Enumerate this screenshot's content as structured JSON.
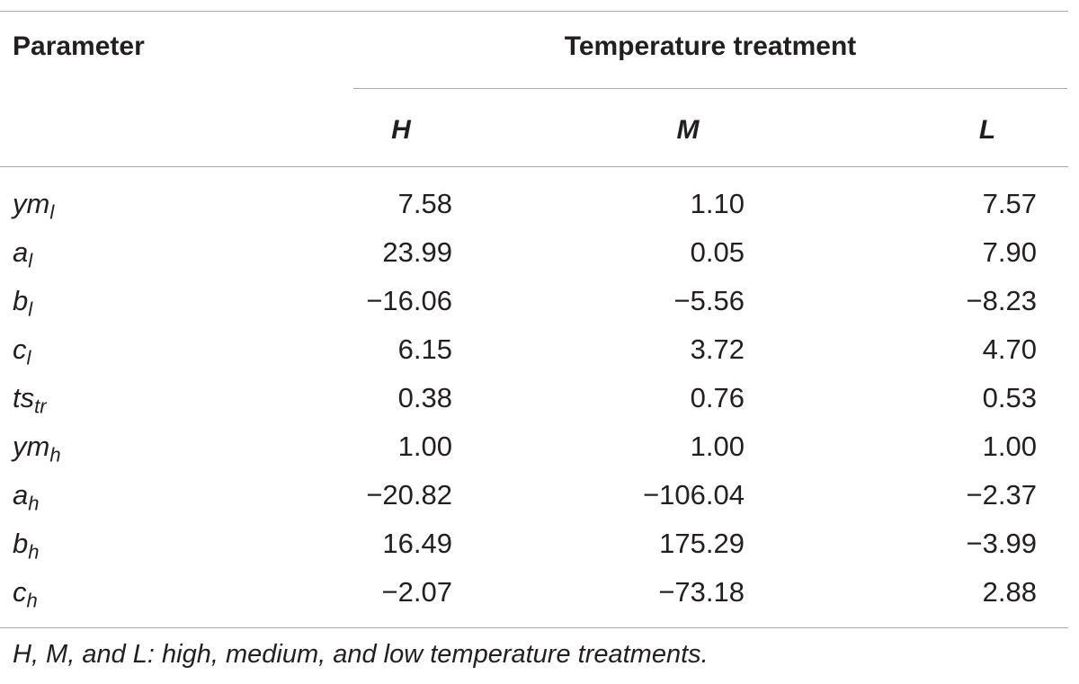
{
  "table": {
    "parameter_header": "Parameter",
    "group_header": "Temperature treatment",
    "columns": [
      "H",
      "M",
      "L"
    ],
    "rows": [
      {
        "symbol": "ym",
        "subscript": "l",
        "values": [
          "7.58",
          "1.10",
          "7.57"
        ]
      },
      {
        "symbol": "a",
        "subscript": "l",
        "values": [
          "23.99",
          "0.05",
          "7.90"
        ]
      },
      {
        "symbol": "b",
        "subscript": "l",
        "values": [
          "−16.06",
          "−5.56",
          "−8.23"
        ]
      },
      {
        "symbol": "c",
        "subscript": "l",
        "values": [
          "6.15",
          "3.72",
          "4.70"
        ]
      },
      {
        "symbol": "ts",
        "subscript": "tr",
        "values": [
          "0.38",
          "0.76",
          "0.53"
        ]
      },
      {
        "symbol": "ym",
        "subscript": "h",
        "values": [
          "1.00",
          "1.00",
          "1.00"
        ]
      },
      {
        "symbol": "a",
        "subscript": "h",
        "values": [
          "−20.82",
          "−106.04",
          "−2.37"
        ]
      },
      {
        "symbol": "b",
        "subscript": "h",
        "values": [
          "16.49",
          "175.29",
          "−3.99"
        ]
      },
      {
        "symbol": "c",
        "subscript": "h",
        "values": [
          "−2.07",
          "−73.18",
          "2.88"
        ]
      }
    ],
    "footnote": "H, M, and L: high, medium, and low temperature treatments."
  }
}
